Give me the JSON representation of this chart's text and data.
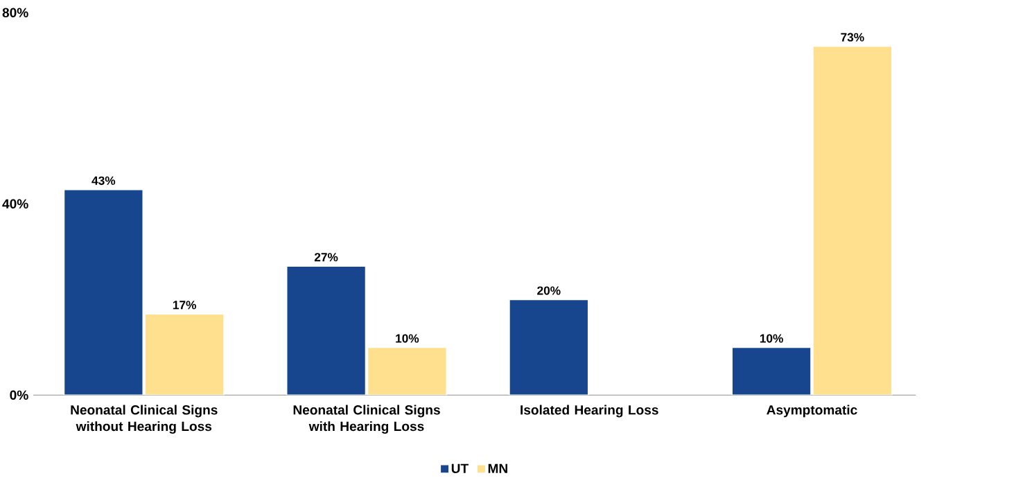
{
  "chart_data": {
    "type": "bar",
    "categories": [
      "Neonatal Clinical Signs without Hearing Loss",
      "Neonatal Clinical Signs with Hearing Loss",
      "Isolated Hearing Loss",
      "Asymptomatic"
    ],
    "series": [
      {
        "name": "UT",
        "color": "#17468e",
        "values": [
          43,
          27,
          20,
          10
        ],
        "value_labels": [
          "43%",
          "27%",
          "20%",
          "10%"
        ]
      },
      {
        "name": "MN",
        "color": "#ffe08f",
        "values": [
          17,
          10,
          null,
          73
        ],
        "value_labels": [
          "17%",
          "10%",
          null,
          "73%"
        ]
      }
    ],
    "ylim": [
      0,
      80
    ],
    "yticks": [
      {
        "value": 0,
        "label": "0%"
      },
      {
        "value": 40,
        "label": "40%"
      },
      {
        "value": 80,
        "label": "80%"
      }
    ],
    "legend": "bottom"
  }
}
